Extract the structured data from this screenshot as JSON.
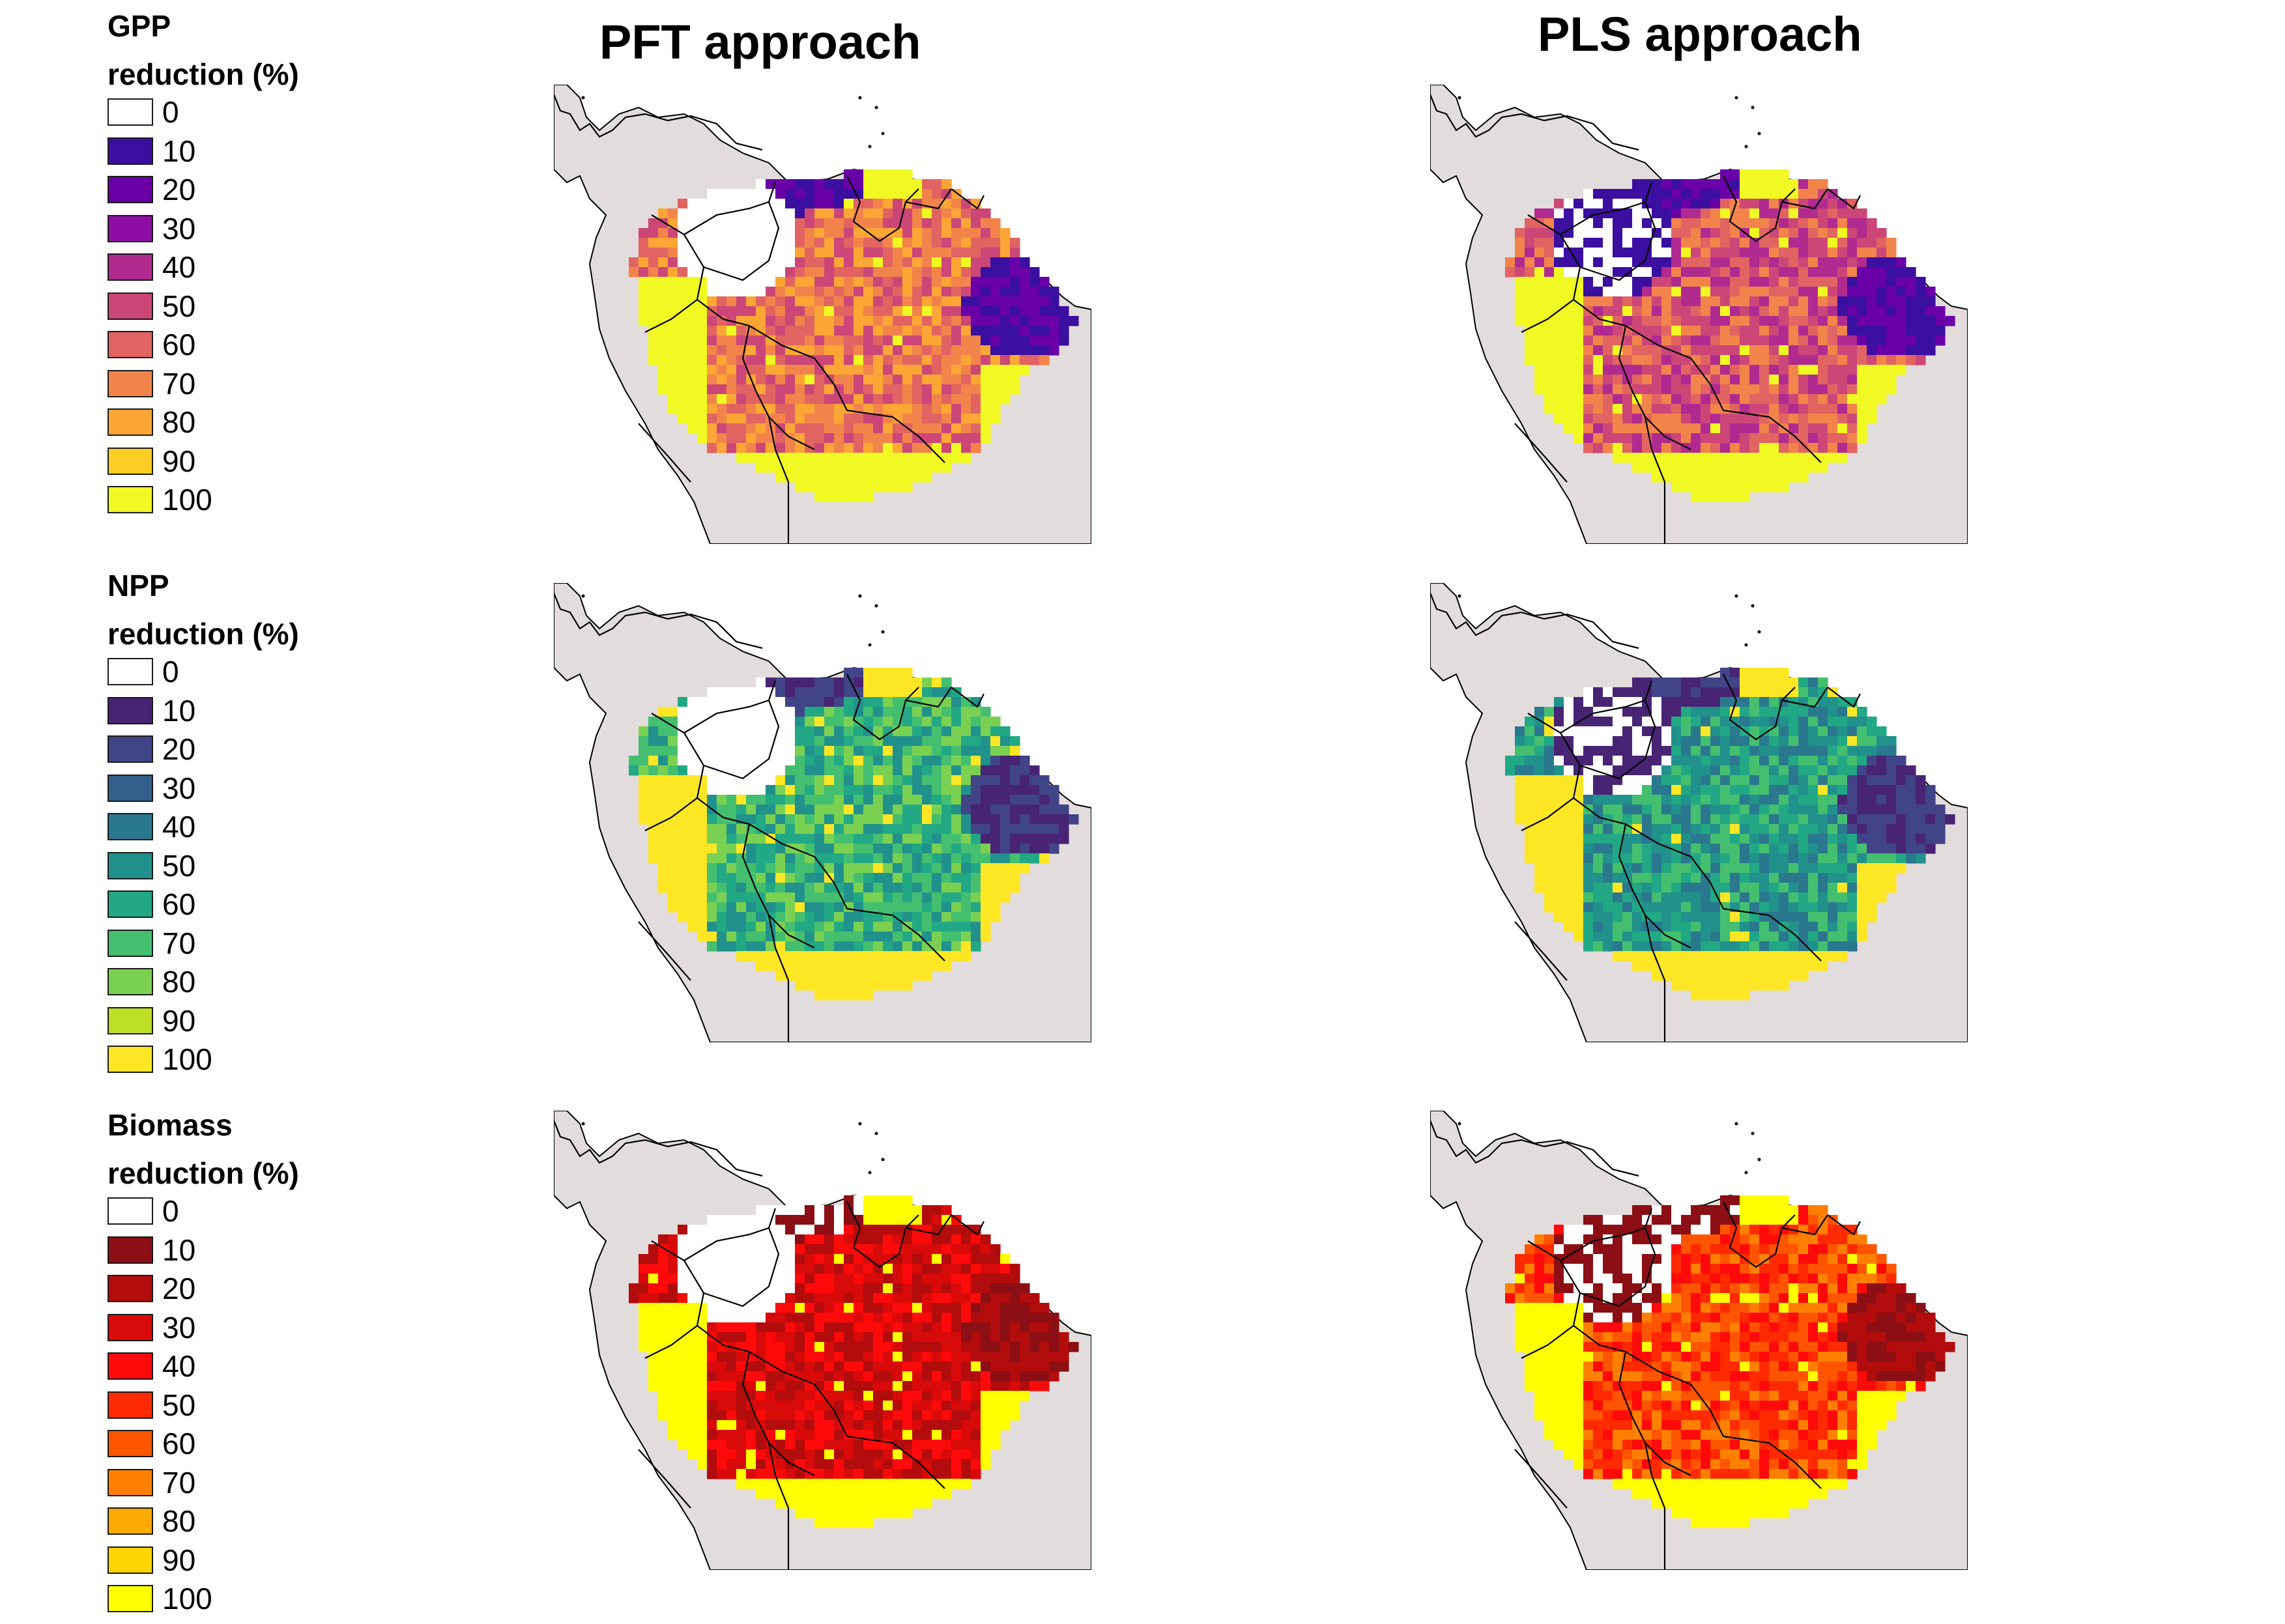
{
  "columns": {
    "pft_title": "PFT approach",
    "pls_title": "PLS approach"
  },
  "legends": [
    {
      "id": "gpp",
      "title_line1": "GPP",
      "title_line2": "reduction (%)",
      "entries": [
        {
          "label": "0",
          "color": "#ffffff"
        },
        {
          "label": "10",
          "color": "#3b0fa0"
        },
        {
          "label": "20",
          "color": "#6a00a8"
        },
        {
          "label": "30",
          "color": "#8f0da4"
        },
        {
          "label": "40",
          "color": "#b12a90"
        },
        {
          "label": "50",
          "color": "#cc4778"
        },
        {
          "label": "60",
          "color": "#e16462"
        },
        {
          "label": "70",
          "color": "#f2844b"
        },
        {
          "label": "80",
          "color": "#fca636"
        },
        {
          "label": "90",
          "color": "#fcce25"
        },
        {
          "label": "100",
          "color": "#f0f921"
        }
      ]
    },
    {
      "id": "npp",
      "title_line1": "NPP",
      "title_line2": "reduction (%)",
      "entries": [
        {
          "label": "0",
          "color": "#ffffff"
        },
        {
          "label": "10",
          "color": "#482475"
        },
        {
          "label": "20",
          "color": "#414487"
        },
        {
          "label": "30",
          "color": "#355f8d"
        },
        {
          "label": "40",
          "color": "#2a788e"
        },
        {
          "label": "50",
          "color": "#21918c"
        },
        {
          "label": "60",
          "color": "#22a884"
        },
        {
          "label": "70",
          "color": "#44bf70"
        },
        {
          "label": "80",
          "color": "#7ad151"
        },
        {
          "label": "90",
          "color": "#bddf26"
        },
        {
          "label": "100",
          "color": "#fde725"
        }
      ]
    },
    {
      "id": "biomass",
      "title_line1": "Biomass",
      "title_line2": "reduction (%)",
      "entries": [
        {
          "label": "0",
          "color": "#ffffff"
        },
        {
          "label": "10",
          "color": "#8b0f14"
        },
        {
          "label": "20",
          "color": "#b30c0c"
        },
        {
          "label": "30",
          "color": "#d90a0a"
        },
        {
          "label": "40",
          "color": "#ff0a0a"
        },
        {
          "label": "50",
          "color": "#ff2a00"
        },
        {
          "label": "60",
          "color": "#ff5500"
        },
        {
          "label": "70",
          "color": "#ff8000"
        },
        {
          "label": "80",
          "color": "#ffaa00"
        },
        {
          "label": "90",
          "color": "#ffd500"
        },
        {
          "label": "100",
          "color": "#ffff00"
        }
      ]
    }
  ],
  "maps": [
    {
      "row": "gpp",
      "approach": "pft"
    },
    {
      "row": "gpp",
      "approach": "pls"
    },
    {
      "row": "npp",
      "approach": "pft"
    },
    {
      "row": "npp",
      "approach": "pls"
    },
    {
      "row": "biomass",
      "approach": "pft"
    },
    {
      "row": "biomass",
      "approach": "pls"
    }
  ],
  "colors": {
    "land_background": "#e3dcdc",
    "border_line": "#000000"
  }
}
